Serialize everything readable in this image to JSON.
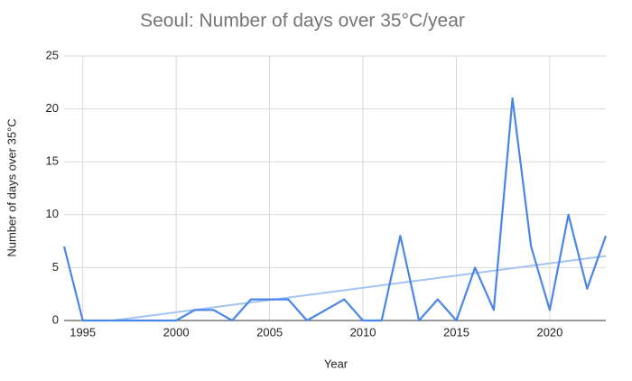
{
  "chart_data": {
    "type": "line",
    "title": "Seoul: Number of days over 35°C/year",
    "x_label": "Year",
    "y_label": "Number of days over 35°C",
    "x": [
      1994,
      1995,
      1996,
      1997,
      1998,
      1999,
      2000,
      2001,
      2002,
      2003,
      2004,
      2005,
      2006,
      2007,
      2008,
      2009,
      2010,
      2011,
      2012,
      2013,
      2014,
      2015,
      2016,
      2017,
      2018,
      2019,
      2020,
      2021,
      2022,
      2023
    ],
    "series": [
      {
        "name": "Number of days over 35°C",
        "color": "#4a86e8",
        "values": [
          7,
          0,
          0,
          0,
          0,
          0,
          0,
          1,
          1,
          0,
          2,
          2,
          2,
          0,
          1,
          2,
          0,
          0,
          8,
          0,
          2,
          0,
          5,
          1,
          21,
          7,
          1,
          10,
          3,
          8
        ]
      }
    ],
    "trendline": {
      "color": "#a4c2f4",
      "x": [
        1996.6,
        2023
      ],
      "values": [
        0,
        6.1
      ]
    },
    "xlim": [
      1994,
      2023
    ],
    "xticks": [
      1995,
      2000,
      2005,
      2010,
      2015,
      2020
    ],
    "ylim": [
      0,
      25
    ],
    "yticks": [
      0,
      5,
      10,
      15,
      20,
      25
    ],
    "grid": true
  }
}
